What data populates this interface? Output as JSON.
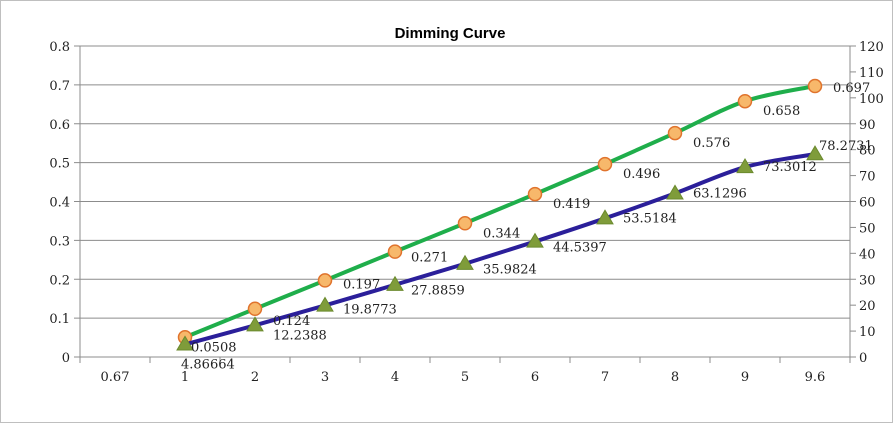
{
  "chart_data": {
    "type": "line",
    "title": "Dimming Curve",
    "categories": [
      "0.67",
      "1",
      "2",
      "3",
      "4",
      "5",
      "6",
      "7",
      "8",
      "9",
      "9.6"
    ],
    "y_left": {
      "range": [
        0,
        0.8
      ],
      "ticks": [
        "0",
        "0.1",
        "0.2",
        "0.3",
        "0.4",
        "0.5",
        "0.6",
        "0.7",
        "0.8"
      ]
    },
    "y_right": {
      "range": [
        0,
        120
      ],
      "ticks": [
        "0",
        "10",
        "20",
        "30",
        "40",
        "50",
        "60",
        "70",
        "80",
        "90",
        "100",
        "110",
        "120"
      ]
    },
    "grid": true,
    "series": [
      {
        "axis": "left",
        "color": "#1fae4b",
        "marker": "circle",
        "marker_fill": "#f7b86b",
        "marker_stroke": "#e0732c",
        "x": [
          1,
          2,
          3,
          4,
          5,
          6,
          7,
          8,
          9,
          9.6
        ],
        "values": [
          0.0508,
          0.124,
          0.197,
          0.271,
          0.344,
          0.419,
          0.496,
          0.576,
          0.658,
          0.697
        ],
        "labels": [
          "0.0508",
          "0.124",
          "0.197",
          "0.271",
          "0.344",
          "0.419",
          "0.496",
          "0.576",
          "0.658",
          "0.697"
        ]
      },
      {
        "axis": "right",
        "color": "#2b1f9a",
        "marker": "triangle",
        "marker_fill": "#7f9c3a",
        "marker_stroke": "#6b8a2e",
        "x": [
          1,
          2,
          3,
          4,
          5,
          6,
          7,
          8,
          9,
          9.6
        ],
        "values": [
          4.86664,
          12.2388,
          19.8773,
          27.8859,
          35.9824,
          44.5397,
          53.5184,
          63.1296,
          73.3012,
          78.2731
        ],
        "labels": [
          "4.86664",
          "12.2388",
          "19.8773",
          "27.8859",
          "35.9824",
          "44.5397",
          "53.5184",
          "63.1296",
          "73.3012",
          "78.2731"
        ]
      }
    ]
  }
}
